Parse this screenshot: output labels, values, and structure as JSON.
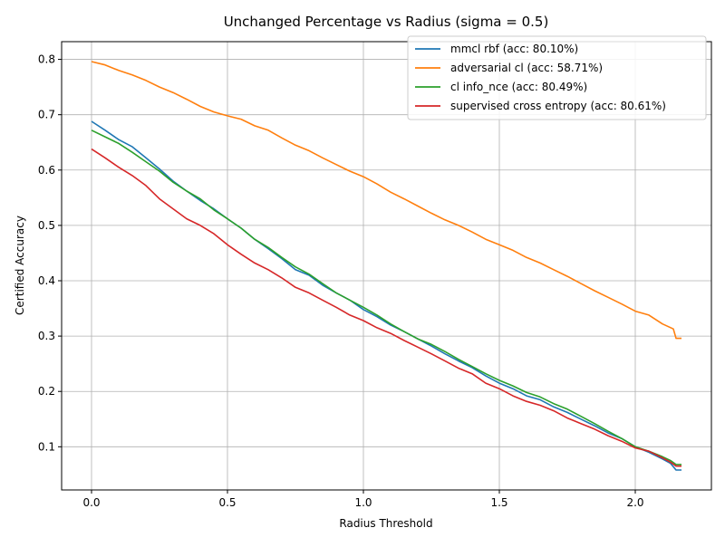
{
  "chart_data": {
    "type": "line",
    "title": "Unchanged Percentage vs Radius (sigma = 0.5)",
    "xlabel": "Radius Threshold",
    "ylabel": "Certified Accuracy",
    "xlim": [
      -0.11,
      2.28
    ],
    "ylim": [
      0.022,
      0.832
    ],
    "xticks": [
      0.0,
      0.5,
      1.0,
      1.5,
      2.0
    ],
    "xtick_labels": [
      "0.0",
      "0.5",
      "1.0",
      "1.5",
      "2.0"
    ],
    "yticks": [
      0.1,
      0.2,
      0.3,
      0.4,
      0.5,
      0.6,
      0.7,
      0.8
    ],
    "ytick_labels": [
      "0.1",
      "0.2",
      "0.3",
      "0.4",
      "0.5",
      "0.6",
      "0.7",
      "0.8"
    ],
    "grid": true,
    "legend_position": "top-right",
    "series": [
      {
        "name": "mmcl rbf (acc: 80.10%)",
        "color": "#1f77b4",
        "x": [
          0.0,
          0.05,
          0.1,
          0.15,
          0.2,
          0.25,
          0.3,
          0.35,
          0.4,
          0.45,
          0.5,
          0.55,
          0.6,
          0.65,
          0.7,
          0.75,
          0.8,
          0.85,
          0.9,
          0.95,
          1.0,
          1.05,
          1.1,
          1.15,
          1.2,
          1.25,
          1.3,
          1.35,
          1.4,
          1.45,
          1.5,
          1.55,
          1.6,
          1.65,
          1.7,
          1.75,
          1.8,
          1.85,
          1.9,
          1.95,
          2.0,
          2.05,
          2.1,
          2.13,
          2.15,
          2.17
        ],
        "y": [
          0.688,
          0.672,
          0.655,
          0.642,
          0.622,
          0.602,
          0.58,
          0.562,
          0.545,
          0.53,
          0.512,
          0.495,
          0.475,
          0.458,
          0.44,
          0.42,
          0.41,
          0.392,
          0.378,
          0.365,
          0.348,
          0.335,
          0.32,
          0.308,
          0.295,
          0.282,
          0.268,
          0.255,
          0.243,
          0.228,
          0.215,
          0.205,
          0.192,
          0.185,
          0.172,
          0.162,
          0.15,
          0.138,
          0.125,
          0.115,
          0.1,
          0.09,
          0.078,
          0.07,
          0.058,
          0.058
        ]
      },
      {
        "name": "adversarial cl (acc: 58.71%)",
        "color": "#ff7f0e",
        "x": [
          0.0,
          0.05,
          0.1,
          0.15,
          0.2,
          0.25,
          0.3,
          0.35,
          0.4,
          0.45,
          0.5,
          0.55,
          0.6,
          0.65,
          0.7,
          0.75,
          0.8,
          0.85,
          0.9,
          0.95,
          1.0,
          1.05,
          1.1,
          1.15,
          1.2,
          1.25,
          1.3,
          1.35,
          1.4,
          1.45,
          1.5,
          1.55,
          1.6,
          1.65,
          1.7,
          1.75,
          1.8,
          1.85,
          1.9,
          1.95,
          2.0,
          2.05,
          2.1,
          2.14,
          2.15,
          2.17
        ],
        "y": [
          0.796,
          0.79,
          0.78,
          0.772,
          0.762,
          0.75,
          0.74,
          0.728,
          0.715,
          0.705,
          0.698,
          0.692,
          0.68,
          0.672,
          0.658,
          0.645,
          0.635,
          0.622,
          0.61,
          0.598,
          0.588,
          0.575,
          0.56,
          0.548,
          0.535,
          0.522,
          0.51,
          0.5,
          0.488,
          0.475,
          0.465,
          0.455,
          0.442,
          0.432,
          0.42,
          0.408,
          0.395,
          0.382,
          0.37,
          0.358,
          0.345,
          0.338,
          0.322,
          0.313,
          0.296,
          0.296
        ]
      },
      {
        "name": "cl info_nce (acc: 80.49%)",
        "color": "#2ca02c",
        "x": [
          0.0,
          0.05,
          0.1,
          0.15,
          0.2,
          0.25,
          0.3,
          0.35,
          0.4,
          0.45,
          0.5,
          0.55,
          0.6,
          0.65,
          0.7,
          0.75,
          0.8,
          0.85,
          0.9,
          0.95,
          1.0,
          1.05,
          1.1,
          1.15,
          1.2,
          1.25,
          1.3,
          1.35,
          1.4,
          1.45,
          1.5,
          1.55,
          1.6,
          1.65,
          1.7,
          1.75,
          1.8,
          1.85,
          1.9,
          1.95,
          2.0,
          2.05,
          2.1,
          2.13,
          2.15,
          2.17
        ],
        "y": [
          0.672,
          0.66,
          0.648,
          0.632,
          0.615,
          0.598,
          0.578,
          0.562,
          0.548,
          0.528,
          0.512,
          0.495,
          0.475,
          0.46,
          0.442,
          0.425,
          0.412,
          0.395,
          0.378,
          0.365,
          0.352,
          0.338,
          0.322,
          0.308,
          0.295,
          0.285,
          0.272,
          0.258,
          0.245,
          0.232,
          0.22,
          0.21,
          0.198,
          0.19,
          0.178,
          0.168,
          0.155,
          0.142,
          0.128,
          0.115,
          0.1,
          0.092,
          0.082,
          0.075,
          0.068,
          0.068
        ]
      },
      {
        "name": "supervised cross entropy (acc: 80.61%)",
        "color": "#d62728",
        "x": [
          0.0,
          0.05,
          0.1,
          0.15,
          0.2,
          0.25,
          0.3,
          0.35,
          0.4,
          0.45,
          0.5,
          0.55,
          0.6,
          0.65,
          0.7,
          0.75,
          0.8,
          0.85,
          0.9,
          0.95,
          1.0,
          1.05,
          1.1,
          1.15,
          1.2,
          1.25,
          1.3,
          1.35,
          1.4,
          1.45,
          1.5,
          1.55,
          1.6,
          1.65,
          1.7,
          1.75,
          1.8,
          1.85,
          1.9,
          1.95,
          2.0,
          2.05,
          2.1,
          2.13,
          2.15,
          2.17
        ],
        "y": [
          0.638,
          0.622,
          0.605,
          0.59,
          0.572,
          0.548,
          0.53,
          0.512,
          0.5,
          0.485,
          0.465,
          0.448,
          0.432,
          0.42,
          0.405,
          0.388,
          0.378,
          0.365,
          0.352,
          0.338,
          0.328,
          0.315,
          0.305,
          0.292,
          0.28,
          0.268,
          0.255,
          0.242,
          0.232,
          0.215,
          0.205,
          0.192,
          0.182,
          0.175,
          0.165,
          0.152,
          0.142,
          0.132,
          0.12,
          0.11,
          0.098,
          0.092,
          0.08,
          0.072,
          0.065,
          0.065
        ]
      }
    ]
  }
}
